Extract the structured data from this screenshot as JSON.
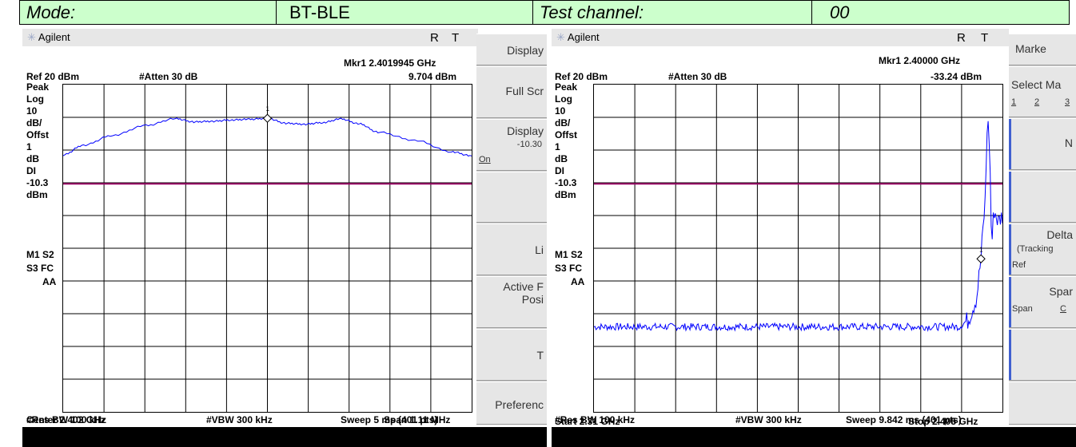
{
  "header": {
    "mode_label": "Mode:",
    "mode_value": "BT-BLE",
    "channel_label": "Test channel:",
    "channel_value": "00"
  },
  "colors": {
    "trace": "#0000ff",
    "display_line": "#990066",
    "header_bg": "#ccffcc"
  },
  "left": {
    "brand": "Agilent",
    "r": "R",
    "t": "T",
    "marker": "Mkr1  2.4019945 GHz",
    "marker_level": "9.704 dBm",
    "ref": "Ref 20 dBm",
    "atten": "#Atten 30 dB",
    "side": [
      "Peak",
      "Log",
      "10",
      "dB/",
      "Offst",
      "1",
      "dB",
      "DI",
      "-10.3",
      "dBm"
    ],
    "side2": [
      "M1  S2",
      "S3  FC",
      "AA"
    ],
    "marker_num": "1",
    "center": "Center 2.402 GHz",
    "span": "Span 1.11 MHz",
    "rbw": "#Res BW 100 kHz",
    "vbw": "#VBW 300 kHz",
    "sweep": "Sweep 5 ms (401 pts)",
    "softkeys": {
      "k1": "Display",
      "k2": "Full Scr",
      "k3": "Display",
      "k3_sub": "-10.30",
      "k3_on": "On",
      "k5": "Li",
      "k6a": "Active F",
      "k6b": "Posi",
      "k7": "T",
      "k8": "Preferenc"
    }
  },
  "right": {
    "brand": "Agilent",
    "r": "R",
    "t": "T",
    "marker": "Mkr1  2.40000 GHz",
    "marker_level": "-33.24 dBm",
    "ref": "Ref 20 dBm",
    "atten": "#Atten 30 dB",
    "side": [
      "Peak",
      "Log",
      "10",
      "dB/",
      "Offst",
      "1",
      "dB",
      "DI",
      "-10.3",
      "dBm"
    ],
    "side2": [
      "M1  S2",
      "S3  FC",
      "AA"
    ],
    "marker_num": "1",
    "start": "Start 2.31 GHz",
    "stop": "Stop 2.405 GHz",
    "rbw": "#Res BW 100 kHz",
    "vbw": "#VBW 300 kHz",
    "sweep": "Sweep 9.842 ms (401 pts)",
    "softkeys": {
      "k1": "Marke",
      "k2": "Select Ma",
      "k2_n1": "1",
      "k2_n2": "2",
      "k2_n3": "3",
      "k3": "N",
      "k5a": "Delta",
      "k5b": "(Tracking",
      "k5c": "Ref",
      "k6a": "Spar",
      "k6b": "Span",
      "k6c": "C"
    }
  },
  "chart_data": [
    {
      "type": "line",
      "title": "",
      "x_unit": "MHz offset from center",
      "y_unit": "dBm",
      "ylim": [
        -80,
        20
      ],
      "display_line": -10.3,
      "marker": {
        "x": 0.0,
        "y": 9.704
      },
      "series": [
        {
          "x": [
            -0.555,
            -0.5,
            -0.42,
            -0.33,
            -0.25,
            -0.2,
            -0.15,
            -0.1,
            -0.05,
            0.0,
            0.05,
            0.1,
            0.15,
            0.2,
            0.25,
            0.3,
            0.4,
            0.5,
            0.555
          ],
          "values": [
            -1.5,
            1.5,
            4.5,
            7.5,
            9.6,
            8.6,
            8.8,
            9.2,
            9.4,
            9.7,
            8.2,
            7.9,
            8.4,
            9.5,
            8.0,
            5.5,
            3.0,
            -0.5,
            -1.8
          ]
        }
      ]
    },
    {
      "type": "line",
      "title": "",
      "x_unit": "GHz",
      "y_unit": "dBm",
      "ylim": [
        -80,
        20
      ],
      "display_line": -10.3,
      "marker": {
        "x": 2.4,
        "y": -33.24
      },
      "series": [
        {
          "x": [
            2.31,
            2.33,
            2.35,
            2.37,
            2.38,
            2.39,
            2.395,
            2.397,
            2.399,
            2.4,
            2.4005,
            2.401,
            2.4015,
            2.402,
            2.4025,
            2.403,
            2.404,
            2.405
          ],
          "values": [
            -54,
            -54,
            -54,
            -54,
            -54,
            -54,
            -54,
            -52,
            -45,
            -33.2,
            -24,
            -15,
            9.9,
            2,
            -30,
            -18,
            -22,
            -20
          ]
        }
      ]
    }
  ]
}
